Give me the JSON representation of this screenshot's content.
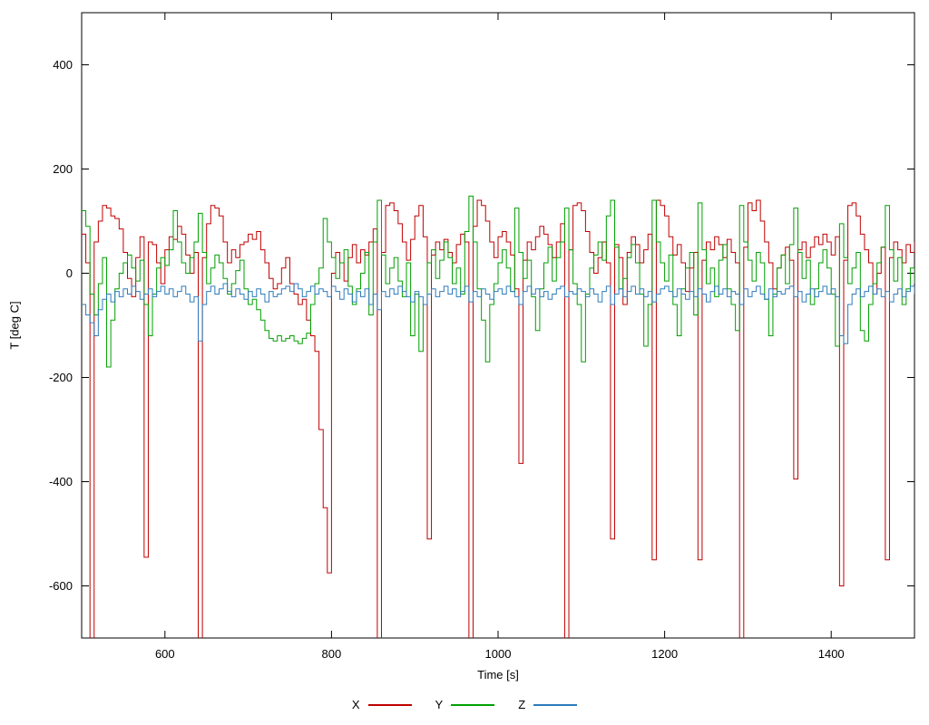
{
  "chart_data": {
    "type": "line",
    "style": "steps",
    "title": "",
    "xlabel": "Time [s]",
    "ylabel": "T [deg C]",
    "xlim": [
      500,
      1500
    ],
    "ylim": [
      -700,
      500
    ],
    "x_ticks": [
      600,
      800,
      1000,
      1200,
      1400
    ],
    "y_ticks": [
      400,
      200,
      0,
      -200,
      -400,
      -600
    ],
    "grid": false,
    "legend_position": "bottom-center",
    "x_start": 500,
    "x_step": 5,
    "series": [
      {
        "name": "X",
        "color": "#c00000",
        "values": [
          75,
          20,
          -750,
          60,
          100,
          130,
          125,
          110,
          105,
          85,
          40,
          -10,
          -45,
          30,
          70,
          -545,
          60,
          55,
          20,
          -20,
          45,
          70,
          65,
          90,
          75,
          35,
          0,
          40,
          -750,
          30,
          95,
          130,
          125,
          110,
          60,
          20,
          45,
          30,
          55,
          60,
          75,
          65,
          80,
          45,
          20,
          -10,
          -30,
          -20,
          10,
          30,
          -20,
          -40,
          -60,
          -50,
          -90,
          -120,
          -150,
          -300,
          -450,
          -575,
          0,
          40,
          20,
          -15,
          30,
          55,
          20,
          45,
          35,
          60,
          85,
          -750,
          40,
          130,
          135,
          120,
          95,
          60,
          25,
          65,
          110,
          130,
          70,
          -510,
          35,
          60,
          45,
          65,
          40,
          20,
          55,
          75,
          60,
          -750,
          90,
          140,
          130,
          100,
          60,
          30,
          70,
          80,
          60,
          35,
          -30,
          -365,
          25,
          60,
          45,
          70,
          90,
          75,
          55,
          30,
          60,
          95,
          -750,
          45,
          130,
          135,
          120,
          80,
          40,
          0,
          30,
          60,
          20,
          -510,
          55,
          30,
          -60,
          40,
          70,
          55,
          20,
          45,
          75,
          -550,
          140,
          130,
          110,
          70,
          35,
          55,
          20,
          -35,
          10,
          40,
          -550,
          25,
          60,
          45,
          70,
          55,
          30,
          65,
          40,
          20,
          -750,
          50,
          135,
          120,
          140,
          100,
          60,
          20,
          -30,
          10,
          35,
          50,
          25,
          -395,
          45,
          60,
          30,
          50,
          70,
          55,
          75,
          60,
          35,
          70,
          -600,
          25,
          130,
          135,
          110,
          75,
          45,
          20,
          -40,
          0,
          50,
          -550,
          30,
          60,
          45,
          20,
          55,
          40,
          60
        ]
      },
      {
        "name": "Y",
        "color": "#00a000",
        "values": [
          120,
          90,
          -40,
          -80,
          -20,
          30,
          -180,
          -90,
          -30,
          0,
          20,
          35,
          10,
          -15,
          25,
          -60,
          -120,
          -40,
          10,
          30,
          15,
          45,
          120,
          60,
          20,
          0,
          30,
          60,
          115,
          40,
          -20,
          10,
          35,
          20,
          -10,
          -40,
          -20,
          5,
          25,
          -30,
          -60,
          -50,
          -70,
          -90,
          -110,
          -125,
          -130,
          -120,
          -130,
          -125,
          -120,
          -130,
          -135,
          -125,
          -115,
          -60,
          -20,
          10,
          105,
          60,
          30,
          -10,
          20,
          45,
          -25,
          -60,
          -30,
          0,
          40,
          -80,
          60,
          140,
          35,
          -20,
          10,
          30,
          -15,
          -45,
          20,
          -120,
          -40,
          -150,
          -60,
          20,
          45,
          -10,
          25,
          60,
          30,
          -20,
          10,
          -40,
          80,
          148,
          60,
          -30,
          -90,
          -170,
          -60,
          -20,
          20,
          45,
          10,
          -35,
          125,
          40,
          -10,
          25,
          -45,
          -110,
          -30,
          20,
          50,
          -15,
          30,
          60,
          125,
          45,
          -20,
          -60,
          -170,
          -40,
          10,
          35,
          60,
          25,
          110,
          140,
          50,
          -30,
          -10,
          30,
          55,
          20,
          -40,
          -140,
          -60,
          140,
          60,
          20,
          -15,
          35,
          -60,
          -120,
          -30,
          10,
          40,
          -80,
          135,
          45,
          -20,
          10,
          -45,
          25,
          55,
          -30,
          -60,
          -110,
          130,
          60,
          25,
          -15,
          40,
          20,
          -50,
          -120,
          -40,
          10,
          35,
          -20,
          55,
          125,
          40,
          -10,
          25,
          -60,
          -30,
          20,
          45,
          10,
          -40,
          -140,
          95,
          30,
          -20,
          10,
          40,
          -110,
          -130,
          -60,
          -20,
          20,
          50,
          130,
          45,
          -15,
          30,
          -60,
          -30,
          10,
          -20
        ]
      },
      {
        "name": "Z",
        "color": "#2d7bbd",
        "values": [
          -60,
          -80,
          -95,
          -120,
          -70,
          -50,
          -40,
          -55,
          -35,
          -45,
          -30,
          -40,
          -25,
          -35,
          -50,
          -40,
          -30,
          -45,
          -35,
          -25,
          -40,
          -30,
          -45,
          -35,
          -25,
          -40,
          -55,
          -45,
          -130,
          -60,
          -35,
          -25,
          -40,
          -30,
          -20,
          -35,
          -45,
          -30,
          -40,
          -50,
          -35,
          -45,
          -30,
          -40,
          -55,
          -35,
          -45,
          -40,
          -30,
          -25,
          -35,
          -20,
          -30,
          -45,
          -35,
          -25,
          -40,
          -30,
          -35,
          -45,
          -25,
          -35,
          -50,
          -30,
          -40,
          -55,
          -35,
          -45,
          -30,
          -60,
          -40,
          -70,
          -35,
          -45,
          -30,
          -40,
          -25,
          -35,
          -45,
          -55,
          -35,
          -45,
          -60,
          -40,
          -30,
          -45,
          -35,
          -25,
          -40,
          -30,
          -45,
          -35,
          -25,
          -55,
          -35,
          -45,
          -30,
          -40,
          -50,
          -35,
          -30,
          -40,
          -25,
          -35,
          -45,
          -60,
          -35,
          -25,
          -40,
          -30,
          -45,
          -35,
          -50,
          -40,
          -30,
          -25,
          -45,
          -35,
          -40,
          -30,
          -35,
          -45,
          -30,
          -40,
          -55,
          -35,
          -25,
          -60,
          -40,
          -30,
          -45,
          -35,
          -25,
          -40,
          -30,
          -45,
          -35,
          -55,
          -40,
          -30,
          -25,
          -35,
          -45,
          -30,
          -40,
          -50,
          -35,
          -45,
          -30,
          -40,
          -55,
          -35,
          -25,
          -40,
          -30,
          -45,
          -35,
          -40,
          -60,
          -30,
          -45,
          -35,
          -25,
          -40,
          -50,
          -30,
          -45,
          -35,
          -40,
          -30,
          -25,
          -45,
          -35,
          -55,
          -40,
          -30,
          -45,
          -35,
          -25,
          -40,
          -30,
          -45,
          -120,
          -135,
          -60,
          -40,
          -30,
          -45,
          -35,
          -25,
          -40,
          -30,
          -45,
          -35,
          -55,
          -40,
          -30,
          -45,
          -35,
          -25,
          -40
        ]
      }
    ]
  }
}
